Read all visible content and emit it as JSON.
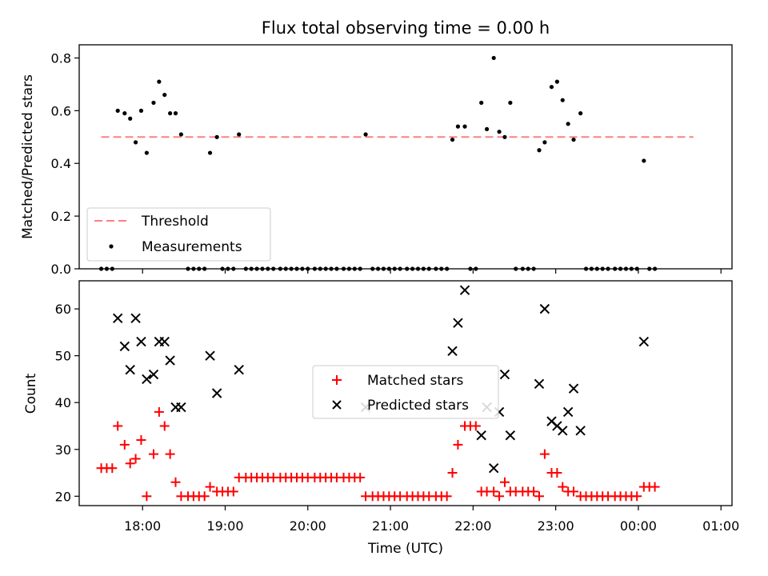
{
  "title": "Flux total observing time = 0.00 h",
  "chart_data": [
    {
      "type": "scatter",
      "ylabel": "Matched/Predicted stars",
      "ylim": [
        0,
        0.85
      ],
      "yticks": [
        0,
        0.2,
        0.4,
        0.6,
        0.8
      ],
      "ytick_labels": [
        "0.0",
        "0.2",
        "0.4",
        "0.6",
        "0.8"
      ],
      "legend_position": "lower-left",
      "threshold": {
        "name": "Threshold",
        "value": 0.5,
        "x_start": "17:30",
        "x_end": "00:40",
        "color": "#ff8080"
      },
      "series": [
        {
          "name": "Measurements",
          "color": "#000000",
          "points": [
            [
              "17:30",
              0
            ],
            [
              "17:34",
              0
            ],
            [
              "17:38",
              0
            ],
            [
              "17:42",
              0.6
            ],
            [
              "17:47",
              0.59
            ],
            [
              "17:51",
              0.57
            ],
            [
              "17:55",
              0.48
            ],
            [
              "17:59",
              0.6
            ],
            [
              "18:03",
              0.44
            ],
            [
              "18:08",
              0.63
            ],
            [
              "18:12",
              0.71
            ],
            [
              "18:16",
              0.66
            ],
            [
              "18:20",
              0.59
            ],
            [
              "18:24",
              0.59
            ],
            [
              "18:28",
              0.51
            ],
            [
              "18:33",
              0
            ],
            [
              "18:37",
              0
            ],
            [
              "18:41",
              0
            ],
            [
              "18:45",
              0
            ],
            [
              "18:49",
              0.44
            ],
            [
              "18:54",
              0.5
            ],
            [
              "18:58",
              0
            ],
            [
              "19:02",
              0
            ],
            [
              "19:06",
              0
            ],
            [
              "19:10",
              0.51
            ],
            [
              "19:15",
              0
            ],
            [
              "19:19",
              0
            ],
            [
              "19:23",
              0
            ],
            [
              "19:27",
              0
            ],
            [
              "19:31",
              0
            ],
            [
              "19:35",
              0
            ],
            [
              "19:40",
              0
            ],
            [
              "19:44",
              0
            ],
            [
              "19:48",
              0
            ],
            [
              "19:52",
              0
            ],
            [
              "19:56",
              0
            ],
            [
              "20:00",
              0
            ],
            [
              "20:05",
              0
            ],
            [
              "20:09",
              0
            ],
            [
              "20:13",
              0
            ],
            [
              "20:17",
              0
            ],
            [
              "20:21",
              0
            ],
            [
              "20:26",
              0
            ],
            [
              "20:30",
              0
            ],
            [
              "20:34",
              0
            ],
            [
              "20:38",
              0
            ],
            [
              "20:42",
              0.51
            ],
            [
              "20:47",
              0
            ],
            [
              "20:51",
              0
            ],
            [
              "20:55",
              0
            ],
            [
              "20:59",
              0
            ],
            [
              "21:03",
              0
            ],
            [
              "21:07",
              0
            ],
            [
              "21:12",
              0
            ],
            [
              "21:16",
              0
            ],
            [
              "21:20",
              0
            ],
            [
              "21:24",
              0
            ],
            [
              "21:28",
              0
            ],
            [
              "21:33",
              0
            ],
            [
              "21:37",
              0
            ],
            [
              "21:41",
              0
            ],
            [
              "21:45",
              0.49
            ],
            [
              "21:49",
              0.54
            ],
            [
              "21:54",
              0.54
            ],
            [
              "21:58",
              0
            ],
            [
              "22:02",
              0
            ],
            [
              "22:06",
              0.63
            ],
            [
              "22:10",
              0.53
            ],
            [
              "22:15",
              0.8
            ],
            [
              "22:19",
              0.52
            ],
            [
              "22:23",
              0.5
            ],
            [
              "22:27",
              0.63
            ],
            [
              "22:31",
              0
            ],
            [
              "22:36",
              0
            ],
            [
              "22:40",
              0
            ],
            [
              "22:44",
              0
            ],
            [
              "22:48",
              0.45
            ],
            [
              "22:52",
              0.48
            ],
            [
              "22:57",
              0.69
            ],
            [
              "23:01",
              0.71
            ],
            [
              "23:05",
              0.64
            ],
            [
              "23:09",
              0.55
            ],
            [
              "23:13",
              0.49
            ],
            [
              "23:18",
              0.59
            ],
            [
              "23:22",
              0
            ],
            [
              "23:26",
              0
            ],
            [
              "23:30",
              0
            ],
            [
              "23:34",
              0
            ],
            [
              "23:38",
              0
            ],
            [
              "23:43",
              0
            ],
            [
              "23:47",
              0
            ],
            [
              "23:51",
              0
            ],
            [
              "23:55",
              0
            ],
            [
              "23:59",
              0
            ],
            [
              "00:04",
              0.41
            ],
            [
              "00:08",
              0
            ],
            [
              "00:12",
              0
            ]
          ]
        }
      ]
    },
    {
      "type": "scatter",
      "xlabel": "Time (UTC)",
      "ylabel": "Count",
      "ylim": [
        18,
        66
      ],
      "yticks": [
        20,
        30,
        40,
        50,
        60
      ],
      "ytick_labels": [
        "20",
        "30",
        "40",
        "50",
        "60"
      ],
      "xtick_labels": [
        "18:00",
        "19:00",
        "20:00",
        "21:00",
        "22:00",
        "23:00",
        "00:00",
        "01:00"
      ],
      "legend_position": "center",
      "series": [
        {
          "name": "Matched stars",
          "marker": "plus",
          "color": "#ff0000",
          "points": [
            [
              "17:30",
              26
            ],
            [
              "17:34",
              26
            ],
            [
              "17:38",
              26
            ],
            [
              "17:42",
              35
            ],
            [
              "17:47",
              31
            ],
            [
              "17:51",
              27
            ],
            [
              "17:55",
              28
            ],
            [
              "17:59",
              32
            ],
            [
              "18:03",
              20
            ],
            [
              "18:08",
              29
            ],
            [
              "18:12",
              38
            ],
            [
              "18:16",
              35
            ],
            [
              "18:20",
              29
            ],
            [
              "18:24",
              23
            ],
            [
              "18:28",
              20
            ],
            [
              "18:33",
              20
            ],
            [
              "18:37",
              20
            ],
            [
              "18:41",
              20
            ],
            [
              "18:45",
              20
            ],
            [
              "18:49",
              22
            ],
            [
              "18:54",
              21
            ],
            [
              "18:58",
              21
            ],
            [
              "19:02",
              21
            ],
            [
              "19:06",
              21
            ],
            [
              "19:10",
              24
            ],
            [
              "19:15",
              24
            ],
            [
              "19:19",
              24
            ],
            [
              "19:23",
              24
            ],
            [
              "19:27",
              24
            ],
            [
              "19:31",
              24
            ],
            [
              "19:35",
              24
            ],
            [
              "19:40",
              24
            ],
            [
              "19:44",
              24
            ],
            [
              "19:48",
              24
            ],
            [
              "19:52",
              24
            ],
            [
              "19:56",
              24
            ],
            [
              "20:00",
              24
            ],
            [
              "20:05",
              24
            ],
            [
              "20:09",
              24
            ],
            [
              "20:13",
              24
            ],
            [
              "20:17",
              24
            ],
            [
              "20:21",
              24
            ],
            [
              "20:26",
              24
            ],
            [
              "20:30",
              24
            ],
            [
              "20:34",
              24
            ],
            [
              "20:38",
              24
            ],
            [
              "20:42",
              20
            ],
            [
              "20:47",
              20
            ],
            [
              "20:51",
              20
            ],
            [
              "20:55",
              20
            ],
            [
              "20:59",
              20
            ],
            [
              "21:03",
              20
            ],
            [
              "21:07",
              20
            ],
            [
              "21:12",
              20
            ],
            [
              "21:16",
              20
            ],
            [
              "21:20",
              20
            ],
            [
              "21:24",
              20
            ],
            [
              "21:28",
              20
            ],
            [
              "21:33",
              20
            ],
            [
              "21:37",
              20
            ],
            [
              "21:41",
              20
            ],
            [
              "21:45",
              25
            ],
            [
              "21:49",
              31
            ],
            [
              "21:54",
              35
            ],
            [
              "21:58",
              35
            ],
            [
              "22:02",
              35
            ],
            [
              "22:06",
              21
            ],
            [
              "22:10",
              21
            ],
            [
              "22:15",
              21
            ],
            [
              "22:19",
              20
            ],
            [
              "22:23",
              23
            ],
            [
              "22:27",
              21
            ],
            [
              "22:31",
              21
            ],
            [
              "22:36",
              21
            ],
            [
              "22:40",
              21
            ],
            [
              "22:44",
              21
            ],
            [
              "22:48",
              20
            ],
            [
              "22:52",
              29
            ],
            [
              "22:57",
              25
            ],
            [
              "23:01",
              25
            ],
            [
              "23:05",
              22
            ],
            [
              "23:09",
              21
            ],
            [
              "23:13",
              21
            ],
            [
              "23:18",
              20
            ],
            [
              "23:22",
              20
            ],
            [
              "23:26",
              20
            ],
            [
              "23:30",
              20
            ],
            [
              "23:34",
              20
            ],
            [
              "23:38",
              20
            ],
            [
              "23:43",
              20
            ],
            [
              "23:47",
              20
            ],
            [
              "23:51",
              20
            ],
            [
              "23:55",
              20
            ],
            [
              "23:59",
              20
            ],
            [
              "00:04",
              22
            ],
            [
              "00:08",
              22
            ],
            [
              "00:12",
              22
            ]
          ]
        },
        {
          "name": "Predicted stars",
          "marker": "x",
          "color": "#000000",
          "points": [
            [
              "17:42",
              58
            ],
            [
              "17:47",
              52
            ],
            [
              "17:51",
              47
            ],
            [
              "17:55",
              58
            ],
            [
              "17:59",
              53
            ],
            [
              "18:03",
              45
            ],
            [
              "18:08",
              46
            ],
            [
              "18:12",
              53
            ],
            [
              "18:16",
              53
            ],
            [
              "18:20",
              49
            ],
            [
              "18:24",
              39
            ],
            [
              "18:28",
              39
            ],
            [
              "18:49",
              50
            ],
            [
              "18:54",
              42
            ],
            [
              "19:10",
              47
            ],
            [
              "20:42",
              39
            ],
            [
              "21:45",
              51
            ],
            [
              "21:49",
              57
            ],
            [
              "21:54",
              64
            ],
            [
              "22:06",
              33
            ],
            [
              "22:10",
              39
            ],
            [
              "22:15",
              26
            ],
            [
              "22:19",
              38
            ],
            [
              "22:23",
              46
            ],
            [
              "22:27",
              33
            ],
            [
              "22:48",
              44
            ],
            [
              "22:52",
              60
            ],
            [
              "22:57",
              36
            ],
            [
              "23:01",
              35
            ],
            [
              "23:05",
              34
            ],
            [
              "23:09",
              38
            ],
            [
              "23:13",
              43
            ],
            [
              "23:18",
              34
            ],
            [
              "00:04",
              53
            ]
          ]
        }
      ]
    }
  ]
}
